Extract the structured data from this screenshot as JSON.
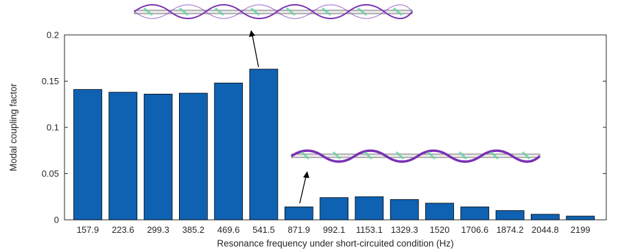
{
  "chart_data": {
    "type": "bar",
    "title": "",
    "xlabel": "Resonance frequency under short-circuited condition (Hz)",
    "ylabel": "Modal coupling factor",
    "categories": [
      "157.9",
      "223.6",
      "299.3",
      "385.2",
      "469.6",
      "541.5",
      "871.9",
      "992.1",
      "1153.1",
      "1329.3",
      "1520",
      "1706.6",
      "1874.2",
      "2044.8",
      "2199"
    ],
    "values": [
      0.141,
      0.138,
      0.136,
      0.137,
      0.148,
      0.163,
      0.014,
      0.024,
      0.025,
      0.022,
      0.018,
      0.014,
      0.01,
      0.006,
      0.004
    ],
    "ylim": [
      0,
      0.2
    ],
    "yticks": [
      0,
      0.05,
      0.1,
      0.15,
      0.2
    ],
    "ytick_labels": [
      "0",
      "0.05",
      "0.1",
      "0.15",
      "0.2"
    ],
    "bar_color": "#0e62b1",
    "grid": false,
    "annotations": [
      {
        "type": "mode-shape-image",
        "category": "541.5"
      },
      {
        "type": "mode-shape-image",
        "category": "871.9"
      }
    ]
  }
}
